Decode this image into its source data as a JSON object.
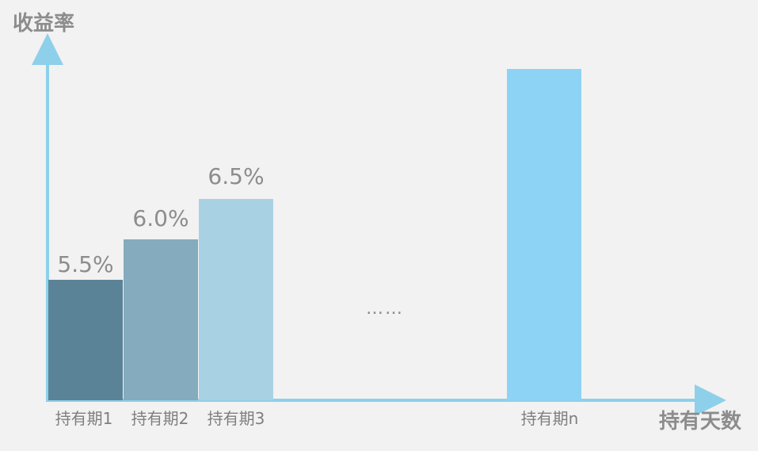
{
  "chart_data": {
    "type": "bar",
    "title": "",
    "ylabel": "收益率",
    "xlabel": "持有天数",
    "categories": [
      "持有期1",
      "持有期2",
      "持有期3",
      "持有期n"
    ],
    "values": [
      5.5,
      6.0,
      6.5,
      null
    ],
    "data_labels": [
      "5.5%",
      "6.0%",
      "6.5%",
      ""
    ],
    "ellipsis_label": "……",
    "axis_color": "#8ed0ea",
    "bar_colors": [
      "#5b8397",
      "#84abbe",
      "#a9d1e4",
      "#8dd3f5"
    ],
    "grid": false,
    "legend": "none"
  }
}
